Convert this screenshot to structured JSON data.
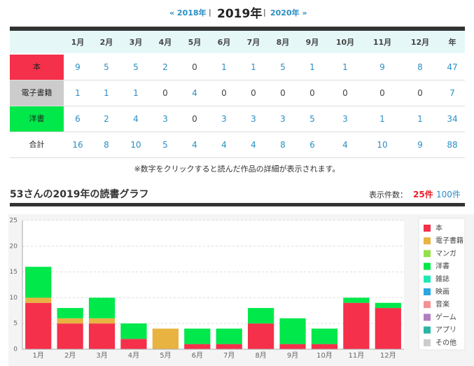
{
  "nav": {
    "prev": "« 2018年",
    "separator": "|",
    "current": "2019年",
    "next": "2020年 »"
  },
  "table": {
    "columns": [
      "1月",
      "2月",
      "3月",
      "4月",
      "5月",
      "6月",
      "7月",
      "8月",
      "9月",
      "10月",
      "11月",
      "12月",
      "年"
    ],
    "rows": [
      {
        "label": "本",
        "color": "#f5304a",
        "values": [
          9,
          5,
          5,
          2,
          0,
          1,
          1,
          5,
          1,
          1,
          9,
          8,
          47
        ]
      },
      {
        "label": "電子書籍",
        "color": "#cccccc",
        "values": [
          1,
          1,
          1,
          0,
          4,
          0,
          0,
          0,
          0,
          0,
          0,
          0,
          7
        ]
      },
      {
        "label": "洋書",
        "color": "#00e84a",
        "values": [
          6,
          2,
          4,
          3,
          0,
          3,
          3,
          3,
          5,
          3,
          1,
          1,
          34
        ]
      },
      {
        "label": "合計",
        "color": "#ffffff",
        "values": [
          16,
          8,
          10,
          5,
          4,
          4,
          4,
          8,
          6,
          4,
          10,
          9,
          88
        ]
      }
    ]
  },
  "note": "※数字をクリックすると読んだ作品の詳細が表示されます。",
  "graph": {
    "title": "53さんの2019年の読書グラフ",
    "count_label": "表示件数：",
    "count_current": "25件",
    "count_other": "100件"
  },
  "chart_data": {
    "type": "bar",
    "stacked": true,
    "grid": true,
    "legend": "right",
    "categories": [
      "1月",
      "2月",
      "3月",
      "4月",
      "5月",
      "6月",
      "7月",
      "8月",
      "9月",
      "10月",
      "11月",
      "12月"
    ],
    "ylim": [
      0,
      25
    ],
    "yticks": [
      0,
      5,
      10,
      15,
      20,
      25
    ],
    "series": [
      {
        "name": "本",
        "color": "#f5304a",
        "values": [
          9,
          5,
          5,
          2,
          0,
          1,
          1,
          5,
          1,
          1,
          9,
          8
        ]
      },
      {
        "name": "電子書籍",
        "color": "#e8b340",
        "values": [
          1,
          1,
          1,
          0,
          4,
          0,
          0,
          0,
          0,
          0,
          0,
          0
        ]
      },
      {
        "name": "マンガ",
        "color": "#95e04a",
        "values": [
          0,
          0,
          0,
          0,
          0,
          0,
          0,
          0,
          0,
          0,
          0,
          0
        ]
      },
      {
        "name": "洋書",
        "color": "#00e84a",
        "values": [
          6,
          2,
          4,
          3,
          0,
          3,
          3,
          3,
          5,
          3,
          1,
          1
        ]
      },
      {
        "name": "雑誌",
        "color": "#1ee8b3",
        "values": [
          0,
          0,
          0,
          0,
          0,
          0,
          0,
          0,
          0,
          0,
          0,
          0
        ]
      },
      {
        "name": "映画",
        "color": "#29a8e0",
        "values": [
          0,
          0,
          0,
          0,
          0,
          0,
          0,
          0,
          0,
          0,
          0,
          0
        ]
      },
      {
        "name": "音楽",
        "color": "#f59090",
        "values": [
          0,
          0,
          0,
          0,
          0,
          0,
          0,
          0,
          0,
          0,
          0,
          0
        ]
      },
      {
        "name": "ゲーム",
        "color": "#b07fc0",
        "values": [
          0,
          0,
          0,
          0,
          0,
          0,
          0,
          0,
          0,
          0,
          0,
          0
        ]
      },
      {
        "name": "アプリ",
        "color": "#2bb5a5",
        "values": [
          0,
          0,
          0,
          0,
          0,
          0,
          0,
          0,
          0,
          0,
          0,
          0
        ]
      },
      {
        "name": "その他",
        "color": "#cccccc",
        "values": [
          0,
          0,
          0,
          0,
          0,
          0,
          0,
          0,
          0,
          0,
          0,
          0
        ]
      }
    ]
  }
}
